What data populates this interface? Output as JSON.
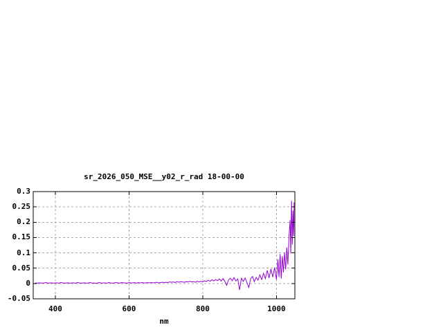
{
  "page": {
    "background_color": "#ffffff"
  },
  "chart_data": {
    "type": "line",
    "title": "sr_2026_050_MSE__y02_r_rad 18-00-00",
    "xlabel": "nm",
    "ylabel": "",
    "xlim": [
      340,
      1050
    ],
    "ylim": [
      -0.05,
      0.3
    ],
    "grid": true,
    "legend": "none",
    "colors": {
      "line": "#9400d3",
      "grid": "#a8a8a8",
      "border": "#000000",
      "text": "#000000",
      "background": "#ffffff"
    },
    "x_ticks": [
      {
        "v": 400,
        "label": "400"
      },
      {
        "v": 600,
        "label": "600"
      },
      {
        "v": 800,
        "label": "800"
      },
      {
        "v": 1000,
        "label": "1000"
      }
    ],
    "y_ticks": [
      {
        "v": -0.05,
        "label": "-0.05"
      },
      {
        "v": 0,
        "label": "0"
      },
      {
        "v": 0.05,
        "label": "0.05"
      },
      {
        "v": 0.1,
        "label": "0.1"
      },
      {
        "v": 0.15,
        "label": "0.15"
      },
      {
        "v": 0.2,
        "label": "0.2"
      },
      {
        "v": 0.25,
        "label": "0.25"
      },
      {
        "v": 0.3,
        "label": "0.3"
      }
    ],
    "series": [
      {
        "name": "sr_2026_050_MSE__y02_r_rad 18-00-00",
        "points": [
          [
            345,
            0.002
          ],
          [
            350,
            0.001
          ],
          [
            355,
            0.002
          ],
          [
            360,
            0.002
          ],
          [
            365,
            0.001
          ],
          [
            370,
            0.002
          ],
          [
            375,
            0.003
          ],
          [
            380,
            0.001
          ],
          [
            385,
            0.002
          ],
          [
            390,
            0.002
          ],
          [
            395,
            0.001
          ],
          [
            400,
            0.002
          ],
          [
            405,
            0.002
          ],
          [
            410,
            0.001
          ],
          [
            415,
            0.003
          ],
          [
            420,
            0.002
          ],
          [
            425,
            0.001
          ],
          [
            430,
            0.002
          ],
          [
            435,
            0.002
          ],
          [
            440,
            0.001
          ],
          [
            445,
            0.002
          ],
          [
            450,
            0.002
          ],
          [
            455,
            0.001
          ],
          [
            460,
            0.003
          ],
          [
            465,
            0.002
          ],
          [
            470,
            0.001
          ],
          [
            475,
            0.002
          ],
          [
            480,
            0.002
          ],
          [
            485,
            0.001
          ],
          [
            490,
            0.002
          ],
          [
            495,
            0.003
          ],
          [
            500,
            0.001
          ],
          [
            505,
            0.002
          ],
          [
            510,
            0.0
          ],
          [
            515,
            0.002
          ],
          [
            520,
            0.003
          ],
          [
            525,
            0.001
          ],
          [
            530,
            0.002
          ],
          [
            535,
            0.002
          ],
          [
            540,
            0.001
          ],
          [
            545,
            0.003
          ],
          [
            550,
            0.002
          ],
          [
            555,
            0.001
          ],
          [
            560,
            0.002
          ],
          [
            565,
            0.003
          ],
          [
            570,
            0.002
          ],
          [
            575,
            0.001
          ],
          [
            580,
            0.003
          ],
          [
            585,
            0.002
          ],
          [
            590,
            0.002
          ],
          [
            595,
            0.001
          ],
          [
            600,
            0.003
          ],
          [
            605,
            0.002
          ],
          [
            610,
            0.002
          ],
          [
            615,
            0.003
          ],
          [
            620,
            0.001
          ],
          [
            625,
            0.003
          ],
          [
            630,
            0.002
          ],
          [
            635,
            0.003
          ],
          [
            640,
            0.002
          ],
          [
            645,
            0.002
          ],
          [
            650,
            0.003
          ],
          [
            655,
            0.002
          ],
          [
            660,
            0.003
          ],
          [
            665,
            0.002
          ],
          [
            670,
            0.003
          ],
          [
            675,
            0.004
          ],
          [
            680,
            0.002
          ],
          [
            685,
            0.003
          ],
          [
            690,
            0.004
          ],
          [
            695,
            0.003
          ],
          [
            700,
            0.004
          ],
          [
            705,
            0.003
          ],
          [
            710,
            0.005
          ],
          [
            715,
            0.004
          ],
          [
            720,
            0.005
          ],
          [
            725,
            0.003
          ],
          [
            730,
            0.006
          ],
          [
            735,
            0.004
          ],
          [
            740,
            0.006
          ],
          [
            745,
            0.005
          ],
          [
            750,
            0.004
          ],
          [
            755,
            0.006
          ],
          [
            760,
            0.005
          ],
          [
            765,
            0.007
          ],
          [
            770,
            0.005
          ],
          [
            775,
            0.006
          ],
          [
            780,
            0.004
          ],
          [
            785,
            0.007
          ],
          [
            790,
            0.005
          ],
          [
            795,
            0.007
          ],
          [
            800,
            0.005
          ],
          [
            805,
            0.009
          ],
          [
            810,
            0.006
          ],
          [
            815,
            0.011
          ],
          [
            820,
            0.007
          ],
          [
            825,
            0.012
          ],
          [
            830,
            0.008
          ],
          [
            835,
            0.013
          ],
          [
            840,
            0.009
          ],
          [
            845,
            0.015
          ],
          [
            850,
            0.008
          ],
          [
            855,
            0.016
          ],
          [
            860,
            0.007
          ],
          [
            865,
            -0.006
          ],
          [
            870,
            0.012
          ],
          [
            875,
            0.017
          ],
          [
            880,
            0.009
          ],
          [
            885,
            0.019
          ],
          [
            890,
            0.008
          ],
          [
            895,
            0.015
          ],
          [
            900,
            -0.021
          ],
          [
            905,
            0.017
          ],
          [
            910,
            0.007
          ],
          [
            915,
            0.018
          ],
          [
            920,
            0.003
          ],
          [
            925,
            -0.013
          ],
          [
            930,
            0.016
          ],
          [
            935,
            0.023
          ],
          [
            940,
            0.006
          ],
          [
            945,
            0.02
          ],
          [
            950,
            0.011
          ],
          [
            955,
            0.028
          ],
          [
            960,
            0.013
          ],
          [
            965,
            0.033
          ],
          [
            970,
            0.016
          ],
          [
            975,
            0.043
          ],
          [
            980,
            0.018
          ],
          [
            985,
            0.047
          ],
          [
            990,
            0.021
          ],
          [
            995,
            0.052
          ],
          [
            1000,
            0.013
          ],
          [
            1004,
            0.079
          ],
          [
            1007,
            0.021
          ],
          [
            1010,
            0.096
          ],
          [
            1013,
            0.016
          ],
          [
            1016,
            0.089
          ],
          [
            1019,
            0.036
          ],
          [
            1022,
            0.101
          ],
          [
            1025,
            0.046
          ],
          [
            1028,
            0.118
          ],
          [
            1031,
            0.062
          ],
          [
            1034,
            0.152
          ],
          [
            1037,
            0.207
          ],
          [
            1039,
            0.098
          ],
          [
            1041,
            0.27
          ],
          [
            1043,
            0.127
          ],
          [
            1045,
            0.238
          ],
          [
            1047,
            0.155
          ],
          [
            1048,
            0.265
          ]
        ]
      }
    ]
  }
}
